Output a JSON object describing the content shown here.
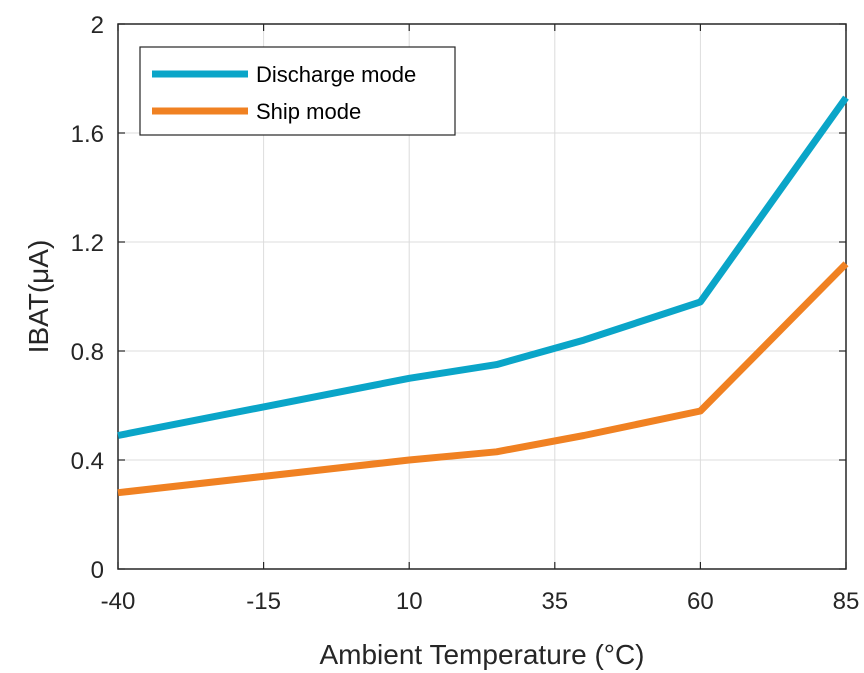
{
  "chart_data": {
    "type": "line",
    "xlabel": "Ambient Temperature (°C)",
    "ylabel": "IBAT(μA)",
    "xlim": [
      -40,
      85
    ],
    "ylim": [
      0,
      2
    ],
    "xticks": [
      "-40",
      "-15",
      "10",
      "35",
      "60",
      "85"
    ],
    "yticks": [
      "0",
      "0.4",
      "0.8",
      "1.2",
      "1.6",
      "2"
    ],
    "grid": true,
    "legend_position": "top-left",
    "series": [
      {
        "name": "Discharge mode",
        "color": "#0AA5C8",
        "x": [
          -40,
          10,
          25,
          40,
          60,
          85
        ],
        "y": [
          0.49,
          0.7,
          0.75,
          0.84,
          0.98,
          1.73
        ]
      },
      {
        "name": "Ship mode",
        "color": "#F08122",
        "x": [
          -40,
          10,
          25,
          40,
          60,
          85
        ],
        "y": [
          0.28,
          0.4,
          0.43,
          0.49,
          0.58,
          1.12
        ]
      }
    ]
  }
}
